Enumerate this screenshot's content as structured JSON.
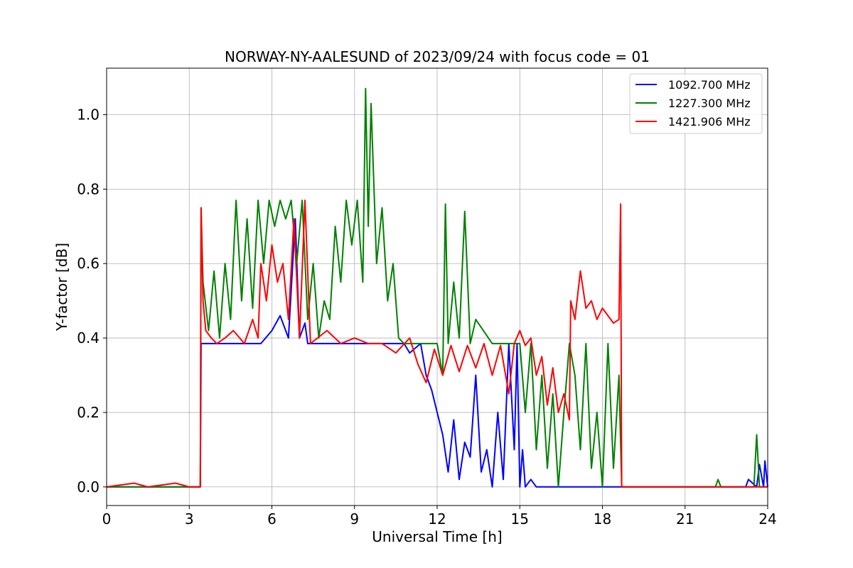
{
  "chart_data": {
    "type": "line",
    "title": "NORWAY-NY-AALESUND of 2023/09/24 with focus code = 01",
    "xlabel": "Universal Time [h]",
    "ylabel": "Y-factor [dB]",
    "xlim": [
      0,
      24
    ],
    "ylim": [
      -0.05,
      1.125
    ],
    "xticks": [
      0,
      3,
      6,
      9,
      12,
      15,
      18,
      21,
      24
    ],
    "xtick_labels": [
      "0",
      "3",
      "6",
      "9",
      "12",
      "15",
      "18",
      "21",
      "24"
    ],
    "yticks": [
      0.0,
      0.2,
      0.4,
      0.6,
      0.8,
      1.0
    ],
    "ytick_labels": [
      "0.0",
      "0.2",
      "0.4",
      "0.6",
      "0.8",
      "1.0"
    ],
    "grid": true,
    "legend_position": "top-right",
    "series": [
      {
        "name": "1092.700 MHz",
        "color": "#0000ff",
        "x": [
          0,
          3.4,
          3.43,
          5.6,
          6.0,
          6.3,
          6.6,
          6.85,
          7.0,
          7.2,
          7.3,
          10.8,
          11.0,
          11.4,
          11.6,
          11.8,
          12.0,
          12.2,
          12.4,
          12.6,
          12.8,
          13.0,
          13.2,
          13.4,
          13.6,
          13.8,
          14.0,
          14.2,
          14.4,
          14.6,
          14.8,
          14.9,
          15.0,
          15.1,
          15.2,
          15.4,
          15.6,
          16.5,
          18.66,
          18.7,
          23.2,
          23.3,
          23.6,
          23.7,
          23.85,
          23.9,
          24
        ],
        "y": [
          0.0,
          0.0,
          0.385,
          0.385,
          0.42,
          0.46,
          0.4,
          0.72,
          0.4,
          0.44,
          0.385,
          0.385,
          0.36,
          0.385,
          0.3,
          0.26,
          0.2,
          0.14,
          0.04,
          0.18,
          0.02,
          0.12,
          0.08,
          0.3,
          0.04,
          0.1,
          0.0,
          0.2,
          0.02,
          0.385,
          0.1,
          0.385,
          0.0,
          0.1,
          0.0,
          0.02,
          0.0,
          0.0,
          0.0,
          0.0,
          0.0,
          0.02,
          0.0,
          0.06,
          0.0,
          0.07,
          0.0
        ]
      },
      {
        "name": "1227.300 MHz",
        "color": "#008000",
        "x": [
          0,
          3.4,
          3.43,
          3.5,
          3.7,
          3.9,
          4.1,
          4.3,
          4.5,
          4.7,
          4.9,
          5.1,
          5.3,
          5.5,
          5.7,
          5.9,
          6.1,
          6.3,
          6.5,
          6.7,
          6.9,
          7.1,
          7.3,
          7.5,
          7.7,
          7.9,
          8.1,
          8.3,
          8.5,
          8.7,
          8.9,
          9.1,
          9.3,
          9.4,
          9.5,
          9.6,
          9.8,
          10.0,
          10.2,
          10.4,
          10.6,
          10.8,
          11.0,
          12.0,
          12.2,
          12.3,
          12.4,
          12.6,
          12.8,
          13.0,
          13.2,
          13.4,
          14.0,
          14.5,
          15.0,
          15.2,
          15.4,
          15.6,
          15.8,
          16.0,
          16.2,
          16.4,
          16.6,
          16.8,
          17.0,
          17.2,
          17.4,
          17.6,
          17.8,
          18.0,
          18.2,
          18.4,
          18.6,
          18.7,
          22.1,
          22.2,
          22.3,
          23.5,
          23.6,
          23.7,
          24
        ],
        "y": [
          0.0,
          0.0,
          0.75,
          0.55,
          0.42,
          0.58,
          0.4,
          0.6,
          0.45,
          0.77,
          0.5,
          0.72,
          0.48,
          0.77,
          0.6,
          0.77,
          0.7,
          0.77,
          0.72,
          0.77,
          0.6,
          0.77,
          0.45,
          0.6,
          0.4,
          0.5,
          0.45,
          0.7,
          0.55,
          0.77,
          0.65,
          0.77,
          0.55,
          1.07,
          0.7,
          1.03,
          0.6,
          0.75,
          0.5,
          0.6,
          0.4,
          0.385,
          0.385,
          0.385,
          0.3,
          0.76,
          0.385,
          0.55,
          0.4,
          0.74,
          0.385,
          0.45,
          0.385,
          0.385,
          0.385,
          0.2,
          0.385,
          0.1,
          0.3,
          0.05,
          0.25,
          0.0,
          0.2,
          0.385,
          0.3,
          0.1,
          0.385,
          0.05,
          0.2,
          0.0,
          0.385,
          0.05,
          0.3,
          0.0,
          0.0,
          0.02,
          0.0,
          0.0,
          0.14,
          0.0,
          0.0
        ]
      },
      {
        "name": "1421.906 MHz",
        "color": "#ff0000",
        "x": [
          0,
          1.0,
          1.5,
          2.5,
          3.0,
          3.4,
          3.43,
          3.5,
          3.6,
          3.8,
          4.0,
          4.3,
          4.6,
          5.0,
          5.3,
          5.5,
          5.6,
          5.8,
          6.0,
          6.2,
          6.4,
          6.6,
          6.8,
          7.0,
          7.2,
          7.4,
          8.0,
          8.5,
          9.0,
          9.5,
          10.0,
          10.5,
          11.0,
          11.3,
          11.6,
          11.9,
          12.2,
          12.5,
          12.8,
          13.1,
          13.4,
          13.7,
          14.0,
          14.3,
          14.6,
          14.8,
          15.0,
          15.2,
          15.4,
          15.6,
          15.8,
          16.0,
          16.2,
          16.4,
          16.6,
          16.8,
          16.85,
          17.0,
          17.2,
          17.4,
          17.6,
          17.8,
          18.0,
          18.2,
          18.4,
          18.6,
          18.66,
          18.7,
          19.0,
          20.0,
          22.0,
          24
        ],
        "y": [
          0.0,
          0.01,
          0.0,
          0.01,
          0.0,
          0.0,
          0.75,
          0.5,
          0.42,
          0.4,
          0.385,
          0.4,
          0.42,
          0.385,
          0.45,
          0.4,
          0.6,
          0.5,
          0.65,
          0.55,
          0.6,
          0.45,
          0.72,
          0.4,
          0.77,
          0.385,
          0.42,
          0.385,
          0.4,
          0.385,
          0.385,
          0.36,
          0.4,
          0.33,
          0.28,
          0.37,
          0.3,
          0.38,
          0.31,
          0.38,
          0.32,
          0.385,
          0.3,
          0.38,
          0.25,
          0.385,
          0.42,
          0.38,
          0.4,
          0.3,
          0.35,
          0.22,
          0.32,
          0.2,
          0.25,
          0.18,
          0.5,
          0.45,
          0.58,
          0.48,
          0.5,
          0.45,
          0.48,
          0.46,
          0.44,
          0.45,
          0.76,
          0.0,
          0.0,
          0.0,
          0.0,
          0.0
        ]
      }
    ]
  }
}
